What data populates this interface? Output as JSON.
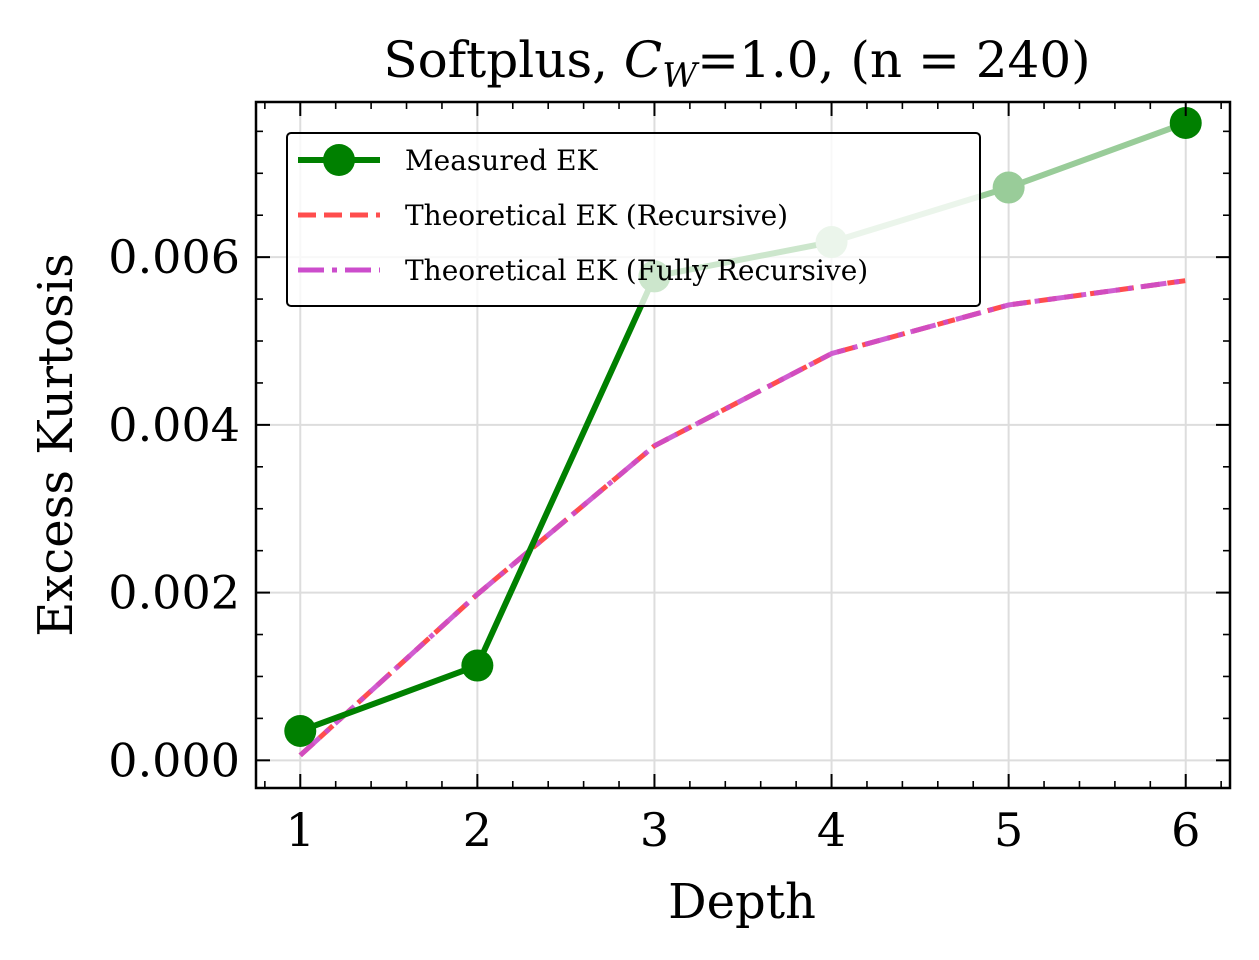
{
  "chart_data": {
    "type": "line",
    "title_prefix": "Softplus, ",
    "title_cw_letter": "C",
    "title_cw_sub": "W",
    "title_suffix": "=1.0, (n = 240)",
    "xlabel": "Depth",
    "ylabel": "Excess Kurtosis",
    "x": [
      1,
      2,
      3,
      4,
      5,
      6
    ],
    "xlim": [
      0.75,
      6.25
    ],
    "ylim": [
      -0.00033,
      0.00785
    ],
    "xticks": [
      1,
      2,
      3,
      4,
      5,
      6
    ],
    "yticks": [
      0.0,
      0.002,
      0.004,
      0.006
    ],
    "ytick_labels": [
      "0.000",
      "0.002",
      "0.004",
      "0.006"
    ],
    "grid": true,
    "legend_position": "top-left",
    "series": [
      {
        "name": "Measured EK",
        "style": "solid-marker",
        "color": "#008000",
        "light_color": "#99cc99",
        "values": [
          0.00035,
          0.00113,
          0.00577,
          0.00618,
          0.00683,
          0.0076
        ],
        "light_points": [
          3,
          4
        ],
        "light_segments": [
          3,
          4
        ]
      },
      {
        "name": "Theoretical EK (Recursive)",
        "style": "dashed",
        "color": "#ff4d4d",
        "values": [
          6e-05,
          0.00198,
          0.00375,
          0.00485,
          0.00543,
          0.00572
        ]
      },
      {
        "name": "Theoretical EK (Fully Recursive)",
        "style": "dashdot",
        "color": "#cc4dcc",
        "values": [
          6e-05,
          0.00198,
          0.00375,
          0.00485,
          0.00543,
          0.00572
        ]
      }
    ]
  }
}
